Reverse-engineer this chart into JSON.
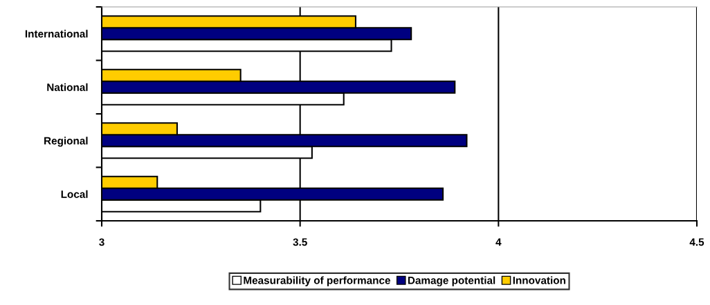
{
  "chart_data": {
    "type": "bar",
    "orientation": "horizontal",
    "categories": [
      "International",
      "National",
      "Regional",
      "Local"
    ],
    "series": [
      {
        "name": "Measurability of performance",
        "color": "#ffffff",
        "values": [
          3.73,
          3.61,
          3.53,
          3.4
        ]
      },
      {
        "name": "Damage potential",
        "color": "#000080",
        "values": [
          3.78,
          3.89,
          3.92,
          3.86
        ]
      },
      {
        "name": "Innovation",
        "color": "#ffcc00",
        "values": [
          3.64,
          3.35,
          3.19,
          3.14
        ]
      }
    ],
    "xlim": [
      3,
      4.5
    ],
    "xticks": [
      3,
      3.5,
      4,
      4.5
    ],
    "grid": "x",
    "legend": "bottom"
  }
}
